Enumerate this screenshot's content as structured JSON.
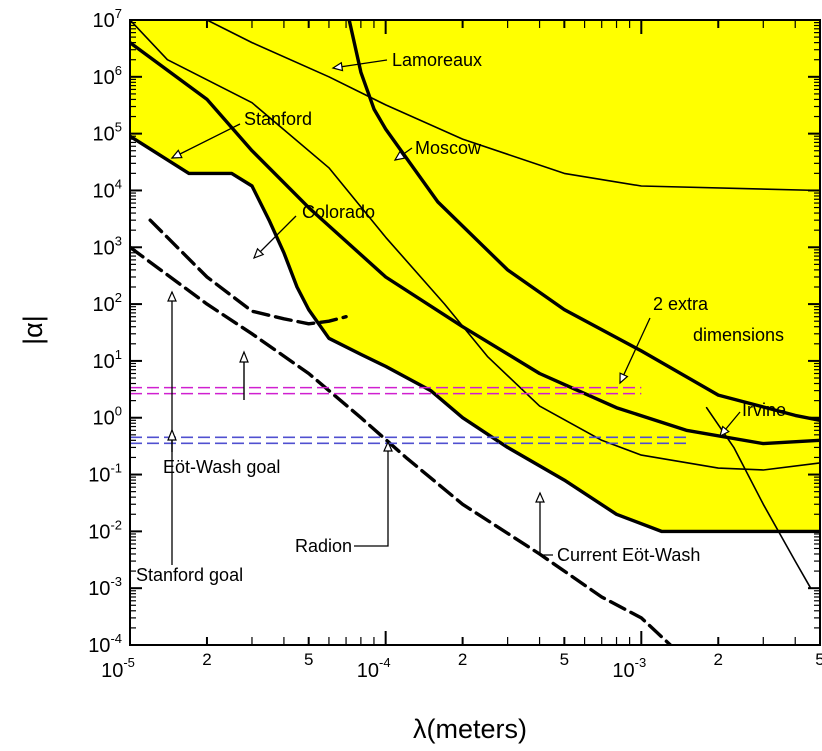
{
  "chart_data": {
    "type": "line",
    "xlabel": "λ(meters)",
    "ylabel": "|α|",
    "xscale": "log",
    "yscale": "log",
    "xlim": [
      1e-05,
      0.005
    ],
    "ylim": [
      0.0001,
      10000000.0
    ],
    "x_ticks": [
      {
        "value": 1e-05,
        "base": "10",
        "exp": "-5",
        "major": true
      },
      {
        "value": 2e-05,
        "label": "2"
      },
      {
        "value": 5e-05,
        "label": "5"
      },
      {
        "value": 0.0001,
        "base": "10",
        "exp": "-4",
        "major": true
      },
      {
        "value": 0.0002,
        "label": "2"
      },
      {
        "value": 0.0005,
        "label": "5"
      },
      {
        "value": 0.001,
        "base": "10",
        "exp": "-3",
        "major": true
      },
      {
        "value": 0.002,
        "label": "2"
      },
      {
        "value": 0.005,
        "label": "5"
      }
    ],
    "y_ticks": [
      {
        "value": 10000000.0,
        "base": "10",
        "exp": "7"
      },
      {
        "value": 1000000.0,
        "base": "10",
        "exp": "6"
      },
      {
        "value": 100000.0,
        "base": "10",
        "exp": "5"
      },
      {
        "value": 10000.0,
        "base": "10",
        "exp": "4"
      },
      {
        "value": 1000.0,
        "base": "10",
        "exp": "3"
      },
      {
        "value": 100.0,
        "base": "10",
        "exp": "2"
      },
      {
        "value": 10.0,
        "base": "10",
        "exp": "1"
      },
      {
        "value": 1.0,
        "base": "10",
        "exp": "0"
      },
      {
        "value": 0.1,
        "base": "10",
        "exp": "-1"
      },
      {
        "value": 0.01,
        "base": "10",
        "exp": "-2"
      },
      {
        "value": 0.001,
        "base": "10",
        "exp": "-3"
      },
      {
        "value": 0.0001,
        "base": "10",
        "exp": "-4"
      }
    ],
    "excluded_region_color": "#ffff00",
    "series": [
      {
        "name": "Lamoreaux",
        "style": "solid",
        "width": "thin",
        "points": [
          [
            2e-05,
            10000000.0
          ],
          [
            3e-05,
            4000000.0
          ],
          [
            6e-05,
            1000000.0
          ],
          [
            0.0001,
            320000.0
          ],
          [
            0.0002,
            80000.0
          ],
          [
            0.0005,
            20000.0
          ],
          [
            0.001,
            12000.0
          ],
          [
            0.005,
            10000.0
          ]
        ]
      },
      {
        "name": "Moscow",
        "style": "solid",
        "width": "thick",
        "points": [
          [
            7.2e-05,
            10000000.0
          ],
          [
            8e-05,
            1200000.0
          ],
          [
            9e-05,
            270000.0
          ],
          [
            0.0001,
            120000.0
          ],
          [
            0.00016,
            6300.0
          ],
          [
            0.0003,
            400
          ],
          [
            0.0005,
            80
          ],
          [
            0.001,
            15
          ],
          [
            0.002,
            2.5
          ],
          [
            0.004,
            1.1
          ],
          [
            0.005,
            0.9
          ]
        ]
      },
      {
        "name": "Stanford",
        "style": "solid",
        "width": "thin",
        "points": [
          [
            1e-05,
            10000000.0
          ],
          [
            1.4e-05,
            2000000.0
          ],
          [
            3e-05,
            350000.0
          ],
          [
            6e-05,
            25000.0
          ],
          [
            0.0001,
            1500.0
          ],
          [
            0.00017,
            100
          ],
          [
            0.00025,
            12
          ],
          [
            0.0004,
            1.6
          ],
          [
            0.0007,
            0.4
          ],
          [
            0.001,
            0.22
          ],
          [
            0.002,
            0.13
          ],
          [
            0.003,
            0.12
          ],
          [
            0.005,
            0.16
          ]
        ]
      },
      {
        "name": "Colorado",
        "style": "solid",
        "width": "thick",
        "points": [
          [
            1e-05,
            4000000.0
          ],
          [
            2e-05,
            400000.0
          ],
          [
            3e-05,
            50000.0
          ],
          [
            5e-05,
            5000.0
          ],
          [
            0.0001,
            300
          ],
          [
            0.0002,
            40
          ],
          [
            0.0004,
            6
          ],
          [
            0.0008,
            1.5
          ],
          [
            0.0015,
            0.6
          ],
          [
            0.003,
            0.35
          ],
          [
            0.005,
            0.4
          ]
        ]
      },
      {
        "name": "Current Eöt-Wash",
        "style": "solid",
        "width": "thick",
        "points": [
          [
            1e-05,
            90000.0
          ],
          [
            1.7e-05,
            20000.0
          ],
          [
            2.5e-05,
            20000.0
          ],
          [
            3e-05,
            12000.0
          ],
          [
            3.5e-05,
            3000.0
          ],
          [
            4e-05,
            800
          ],
          [
            4.5e-05,
            200
          ],
          [
            5e-05,
            80
          ],
          [
            6e-05,
            25
          ],
          [
            8e-05,
            13
          ],
          [
            0.0001,
            8
          ],
          [
            0.00015,
            3
          ],
          [
            0.0002,
            1
          ],
          [
            0.0003,
            0.3
          ],
          [
            0.0005,
            0.08
          ],
          [
            0.0008,
            0.02
          ],
          [
            0.0012,
            0.01
          ],
          [
            0.003,
            0.01
          ],
          [
            0.005,
            0.01
          ]
        ]
      },
      {
        "name": "Irvine",
        "style": "solid",
        "width": "thin",
        "points": [
          [
            0.0018,
            1.5
          ],
          [
            0.0023,
            0.3
          ],
          [
            0.003,
            0.03
          ],
          [
            0.004,
            0.003
          ],
          [
            0.0046,
            0.001
          ]
        ]
      },
      {
        "name": "Stanford goal",
        "style": "dashed",
        "width": "thick",
        "points": [
          [
            1.2e-05,
            3000.0
          ],
          [
            2e-05,
            300
          ],
          [
            3e-05,
            75
          ],
          [
            4e-05,
            55
          ],
          [
            5e-05,
            45
          ],
          [
            6e-05,
            50
          ],
          [
            7e-05,
            60
          ]
        ]
      },
      {
        "name": "Eöt-Wash goal",
        "style": "dashed",
        "width": "thick",
        "points": [
          [
            1e-05,
            1000.0
          ],
          [
            2e-05,
            100
          ],
          [
            3e-05,
            30
          ],
          [
            5e-05,
            6
          ],
          [
            8e-05,
            1
          ],
          [
            0.00012,
            0.2
          ],
          [
            0.0002,
            0.03
          ],
          [
            0.0004,
            0.004
          ],
          [
            0.0007,
            0.0007
          ],
          [
            0.001,
            0.0003
          ],
          [
            0.0013,
            0.0001
          ]
        ]
      },
      {
        "name": "2 extra dimensions",
        "style": "double-dashed",
        "width": "thin",
        "color": "#d020d0",
        "points": [
          [
            1e-05,
            3
          ],
          [
            0.001,
            3
          ]
        ]
      },
      {
        "name": "Radion",
        "style": "double-dashed",
        "width": "thin",
        "color": "#5050d0",
        "points": [
          [
            1e-05,
            0.4
          ],
          [
            0.0015,
            0.4
          ]
        ]
      }
    ],
    "annotations": [
      {
        "text": "Lamoreaux",
        "color": "#000000"
      },
      {
        "text": "Stanford",
        "color": "#000000"
      },
      {
        "text": "Moscow",
        "color": "#000000"
      },
      {
        "text": "Colorado",
        "color": "#000000"
      },
      {
        "text": "2  extra",
        "color": "#d020d0"
      },
      {
        "text": "dimensions",
        "color": "#d020d0"
      },
      {
        "text": "Irvine",
        "color": "#000000"
      },
      {
        "text": "Eöt-Wash goal",
        "color": "#000000"
      },
      {
        "text": "Radion",
        "color": "#3a3ad0"
      },
      {
        "text": "Current  Eöt-Wash",
        "color": "#000000"
      },
      {
        "text": "Stanford  goal",
        "color": "#000000"
      }
    ]
  }
}
